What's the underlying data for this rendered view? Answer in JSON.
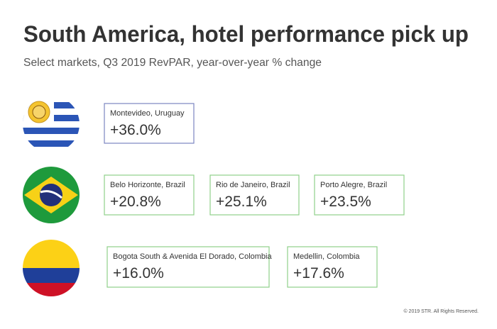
{
  "header": {
    "title": "South America, hotel performance pick up",
    "subtitle": "Select markets, Q3 2019 RevPAR, year-over-year % change"
  },
  "rows": [
    [
      {
        "market": "Montevideo, Uruguay",
        "change": "+36.0%"
      }
    ],
    [
      {
        "market": "Belo Horizonte, Brazil",
        "change": "+20.8%"
      },
      {
        "market": "Rio de Janeiro, Brazil",
        "change": "+25.1%"
      },
      {
        "market": "Porto Alegre, Brazil",
        "change": "+23.5%"
      }
    ],
    [
      {
        "market": "Bogota South & Avenida El Dorado, Colombia",
        "change": "+16.0%"
      },
      {
        "market": "Medellin, Colombia",
        "change": "+17.6%"
      }
    ]
  ],
  "footer": "© 2019 STR. All Rights Reserved."
}
